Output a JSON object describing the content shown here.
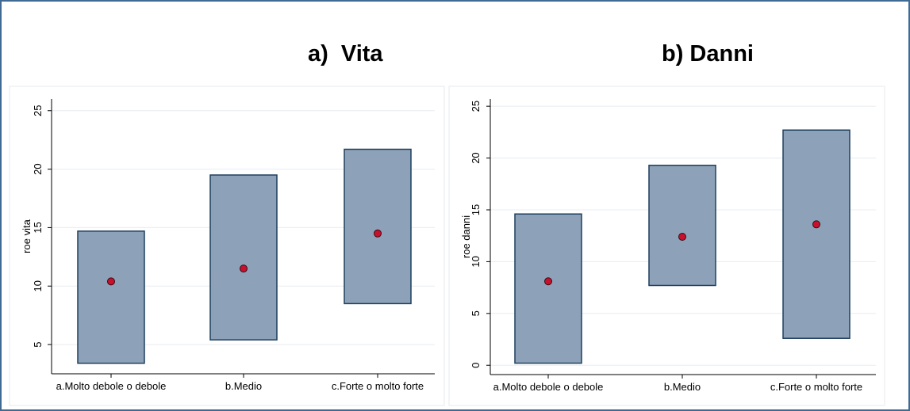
{
  "titles": {
    "a": "a)  Vita",
    "b": "b) Danni"
  },
  "chart_data": [
    {
      "type": "range-bar",
      "title": "a)  Vita",
      "ylabel": "roe vita",
      "xlabel": "",
      "ylim": [
        2.5,
        26
      ],
      "yticks": [
        5,
        10,
        15,
        20,
        25
      ],
      "grid": true,
      "categories": [
        "a.Molto debole o debole",
        "b.Medio",
        "c.Forte o molto forte"
      ],
      "series": [
        {
          "low": [
            3.4,
            5.4,
            8.5
          ],
          "high": [
            14.7,
            19.5,
            21.7
          ],
          "mean": [
            10.4,
            11.5,
            14.5
          ]
        }
      ],
      "colors": {
        "box": "#8da2b8",
        "box_edge": "#1f3f5e",
        "point": "#c8102e",
        "grid": "#e8ecef"
      }
    },
    {
      "type": "range-bar",
      "title": "b) Danni",
      "ylabel": "roe danni",
      "xlabel": "",
      "ylim": [
        -0.9,
        25.7
      ],
      "yticks": [
        0,
        5,
        10,
        15,
        20,
        25
      ],
      "grid": true,
      "categories": [
        "a.Molto debole o debole",
        "b.Medio",
        "c.Forte o molto forte"
      ],
      "series": [
        {
          "low": [
            0.2,
            7.7,
            2.6
          ],
          "high": [
            14.6,
            19.3,
            22.7
          ],
          "mean": [
            8.1,
            12.4,
            13.6
          ]
        }
      ],
      "colors": {
        "box": "#8da2b8",
        "box_edge": "#1f3f5e",
        "point": "#c8102e",
        "grid": "#e8ecef"
      }
    }
  ]
}
